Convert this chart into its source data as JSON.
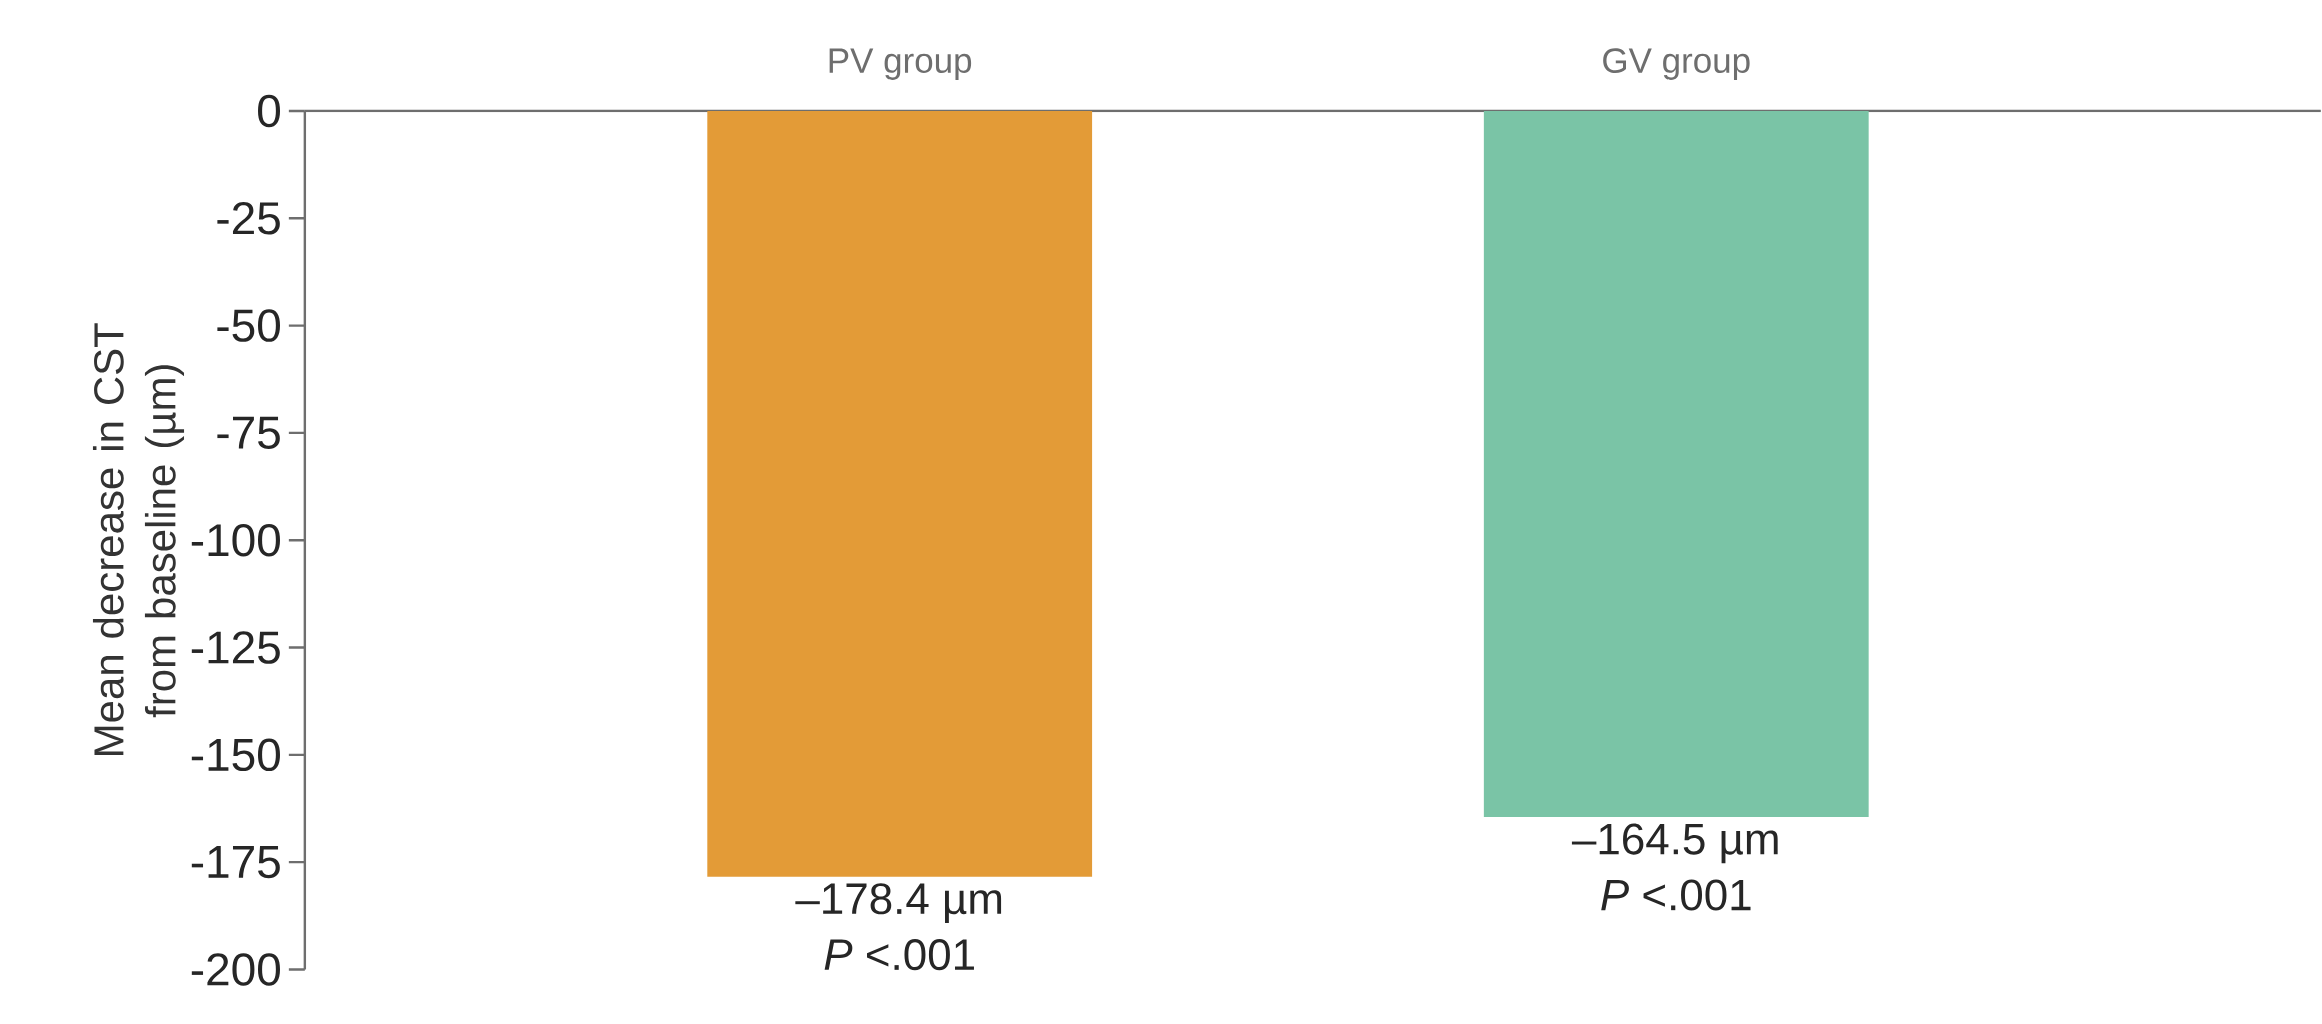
{
  "chart_data": {
    "type": "bar",
    "categories": [
      "PV group",
      "GV group"
    ],
    "values": [
      -178.4,
      -164.5
    ],
    "colors": [
      "#e39b37",
      "#7ac4a6"
    ],
    "value_labels": [
      "–178.4 µm",
      "–164.5 µm"
    ],
    "ylabel": "Mean decrease in CST from baseline (µm)",
    "ylim": [
      -200,
      0
    ],
    "yticks": [
      0,
      -25,
      -50,
      -75,
      -100,
      -125,
      -150,
      -175,
      -200
    ],
    "annotations": [
      {
        "text": "*P* <.001",
        "x": "PV group",
        "y": -178.4
      },
      {
        "text": "*P* <.001",
        "x": "GV group",
        "y": -164.5
      }
    ]
  }
}
